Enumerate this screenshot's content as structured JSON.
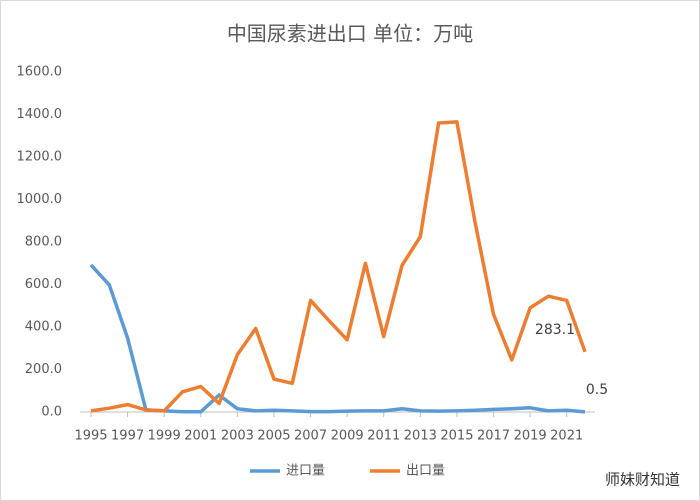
{
  "chart_data": {
    "type": "line",
    "title": "中国尿素进出口 单位：万吨",
    "x": [
      1995,
      1996,
      1997,
      1998,
      1999,
      2000,
      2001,
      2002,
      2003,
      2004,
      2005,
      2006,
      2007,
      2008,
      2009,
      2010,
      2011,
      2012,
      2013,
      2014,
      2015,
      2016,
      2017,
      2018,
      2019,
      2020,
      2021,
      2022
    ],
    "xlim": [
      1995,
      2022
    ],
    "xticks": [
      1995,
      1997,
      1999,
      2001,
      2003,
      2005,
      2007,
      2009,
      2011,
      2013,
      2015,
      2017,
      2019,
      2021
    ],
    "ylim": [
      0,
      1600
    ],
    "yticks": [
      {
        "value": 0,
        "label": "0.0"
      },
      {
        "value": 200,
        "label": "200.0"
      },
      {
        "value": 400,
        "label": "400.0"
      },
      {
        "value": 600,
        "label": "600.0"
      },
      {
        "value": 800,
        "label": "800.0"
      },
      {
        "value": 1000,
        "label": "1000.0"
      },
      {
        "value": 1200,
        "label": "1200.0"
      },
      {
        "value": 1400,
        "label": "1400.0"
      },
      {
        "value": 1600,
        "label": "1600.0"
      }
    ],
    "grid": false,
    "legend": "bottom",
    "series": [
      {
        "name": "进口量",
        "color": "#5b9bd5",
        "values": [
          692,
          598,
          348,
          10,
          5,
          1,
          1,
          80,
          15,
          5,
          8,
          5,
          2,
          2,
          4,
          5,
          5,
          15,
          5,
          4,
          5,
          8,
          12,
          15,
          20,
          5,
          8,
          0.5
        ],
        "value_labels": [
          null,
          null,
          null,
          null,
          null,
          null,
          null,
          null,
          null,
          null,
          null,
          null,
          null,
          null,
          null,
          null,
          null,
          null,
          null,
          null,
          null,
          null,
          null,
          null,
          null,
          null,
          null,
          "0.5"
        ]
      },
      {
        "name": "出口量",
        "color": "#ed7d31",
        "values": [
          5,
          18,
          35,
          10,
          5,
          95,
          120,
          40,
          270,
          393,
          155,
          135,
          525,
          430,
          340,
          700,
          355,
          690,
          825,
          1360,
          1365,
          890,
          460,
          245,
          490,
          545,
          525,
          283.1
        ],
        "value_labels": [
          null,
          null,
          null,
          null,
          null,
          null,
          null,
          null,
          null,
          null,
          null,
          null,
          null,
          null,
          null,
          null,
          null,
          null,
          null,
          null,
          null,
          null,
          null,
          null,
          null,
          null,
          null,
          "283.1"
        ]
      }
    ]
  },
  "watermark": "师妹财知道"
}
